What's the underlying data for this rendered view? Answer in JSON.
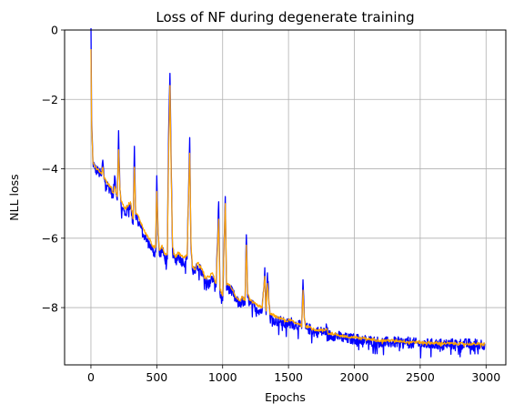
{
  "chart_data": {
    "type": "line",
    "title": "Loss of NF during degenerate training",
    "xlabel": "Epochs",
    "ylabel": "NLL loss",
    "xlim": [
      -200,
      3150
    ],
    "ylim": [
      -9.65,
      0
    ],
    "xticks": [
      0,
      500,
      1000,
      1500,
      2000,
      2500,
      3000
    ],
    "yticks": [
      0,
      -2,
      -4,
      -6,
      -8
    ],
    "ytick_labels": [
      "0",
      "−2",
      "−4",
      "−6",
      "−8"
    ],
    "grid": true,
    "legend": "none",
    "series": [
      {
        "color": "#0000ff",
        "noise": 0.16,
        "x": [
          0,
          5,
          15,
          30,
          60,
          80,
          90,
          100,
          130,
          150,
          170,
          180,
          200,
          210,
          220,
          230,
          260,
          300,
          320,
          330,
          340,
          350,
          380,
          400,
          430,
          450,
          470,
          490,
          500,
          510,
          520,
          540,
          560,
          580,
          590,
          600,
          610,
          620,
          640,
          660,
          700,
          730,
          750,
          760,
          770,
          790,
          810,
          830,
          850,
          870,
          900,
          920,
          950,
          970,
          980,
          1000,
          1020,
          1030,
          1040,
          1060,
          1080,
          1100,
          1130,
          1150,
          1170,
          1180,
          1190,
          1210,
          1250,
          1300,
          1320,
          1330,
          1340,
          1360,
          1380,
          1420,
          1450,
          1480,
          1510,
          1550,
          1580,
          1600,
          1610,
          1620,
          1630,
          1650,
          1700,
          1750,
          1780,
          1790,
          1800,
          1850,
          1900,
          1950,
          2000,
          2100,
          2200,
          2300,
          2400,
          2500,
          2600,
          2700,
          2800,
          2900,
          2990
        ],
        "y": [
          0.3,
          -2.6,
          -3.8,
          -4.0,
          -4.1,
          -4.2,
          -3.75,
          -4.3,
          -4.5,
          -4.6,
          -4.8,
          -4.2,
          -4.9,
          -2.9,
          -4.6,
          -5.1,
          -5.3,
          -5.0,
          -5.6,
          -3.35,
          -5.4,
          -5.4,
          -5.7,
          -5.9,
          -6.1,
          -6.2,
          -6.4,
          -6.4,
          -4.2,
          -5.9,
          -6.5,
          -6.3,
          -6.6,
          -6.6,
          -3.0,
          -1.25,
          -4.1,
          -6.4,
          -6.7,
          -6.5,
          -6.7,
          -6.6,
          -3.1,
          -6.3,
          -6.9,
          -7.0,
          -6.8,
          -6.9,
          -7.1,
          -7.3,
          -7.2,
          -7.1,
          -7.4,
          -4.95,
          -7.6,
          -7.8,
          -4.8,
          -7.5,
          -7.4,
          -7.5,
          -7.6,
          -7.8,
          -7.9,
          -7.8,
          -7.9,
          -5.9,
          -7.7,
          -7.9,
          -8.0,
          -8.1,
          -6.85,
          -8.2,
          -7.0,
          -8.3,
          -8.3,
          -8.4,
          -8.4,
          -8.5,
          -8.4,
          -8.5,
          -8.5,
          -8.6,
          -7.2,
          -8.3,
          -8.6,
          -8.6,
          -8.7,
          -8.7,
          -8.7,
          -8.55,
          -8.8,
          -8.8,
          -8.85,
          -8.9,
          -8.9,
          -8.95,
          -9.0,
          -9.0,
          -9.0,
          -9.05,
          -9.05,
          -9.05,
          -9.05,
          -9.05,
          -9.05
        ]
      },
      {
        "color": "#ffa500",
        "noise": 0.04,
        "x": [
          0,
          5,
          15,
          30,
          60,
          80,
          90,
          100,
          130,
          150,
          170,
          180,
          200,
          210,
          220,
          230,
          260,
          300,
          320,
          330,
          340,
          350,
          380,
          400,
          430,
          450,
          470,
          490,
          500,
          510,
          520,
          540,
          560,
          580,
          590,
          600,
          610,
          620,
          640,
          660,
          700,
          730,
          750,
          760,
          770,
          790,
          810,
          830,
          850,
          870,
          900,
          920,
          950,
          970,
          980,
          1000,
          1020,
          1030,
          1040,
          1060,
          1080,
          1100,
          1130,
          1150,
          1170,
          1180,
          1190,
          1210,
          1250,
          1300,
          1320,
          1330,
          1340,
          1360,
          1380,
          1420,
          1450,
          1480,
          1510,
          1550,
          1580,
          1600,
          1610,
          1620,
          1630,
          1650,
          1700,
          1750,
          1780,
          1790,
          1800,
          1850,
          1900,
          1950,
          2000,
          2100,
          2200,
          2300,
          2400,
          2500,
          2600,
          2700,
          2800,
          2900,
          2990
        ],
        "y": [
          -0.55,
          -2.7,
          -3.8,
          -3.95,
          -4.05,
          -4.15,
          -3.95,
          -4.25,
          -4.45,
          -4.5,
          -4.7,
          -4.5,
          -4.8,
          -3.45,
          -4.55,
          -4.95,
          -5.15,
          -4.95,
          -5.45,
          -3.95,
          -5.3,
          -5.3,
          -5.55,
          -5.75,
          -5.95,
          -6.05,
          -6.25,
          -6.25,
          -4.65,
          -5.8,
          -6.35,
          -6.2,
          -6.45,
          -6.45,
          -3.6,
          -1.6,
          -4.3,
          -6.25,
          -6.55,
          -6.4,
          -6.55,
          -6.5,
          -3.55,
          -6.15,
          -6.8,
          -6.9,
          -6.7,
          -6.8,
          -6.95,
          -7.15,
          -7.1,
          -7.0,
          -7.3,
          -5.45,
          -7.45,
          -7.65,
          -5.0,
          -7.35,
          -7.3,
          -7.4,
          -7.5,
          -7.7,
          -7.8,
          -7.7,
          -7.8,
          -6.2,
          -7.6,
          -7.8,
          -7.9,
          -8.0,
          -7.1,
          -8.1,
          -7.3,
          -8.2,
          -8.2,
          -8.3,
          -8.3,
          -8.4,
          -8.35,
          -8.45,
          -8.45,
          -8.55,
          -7.5,
          -8.3,
          -8.55,
          -8.55,
          -8.65,
          -8.65,
          -8.65,
          -8.6,
          -8.75,
          -8.75,
          -8.8,
          -8.85,
          -8.85,
          -8.9,
          -8.95,
          -8.95,
          -8.98,
          -9.0,
          -9.02,
          -9.03,
          -9.04,
          -9.05,
          -9.05
        ]
      }
    ]
  }
}
